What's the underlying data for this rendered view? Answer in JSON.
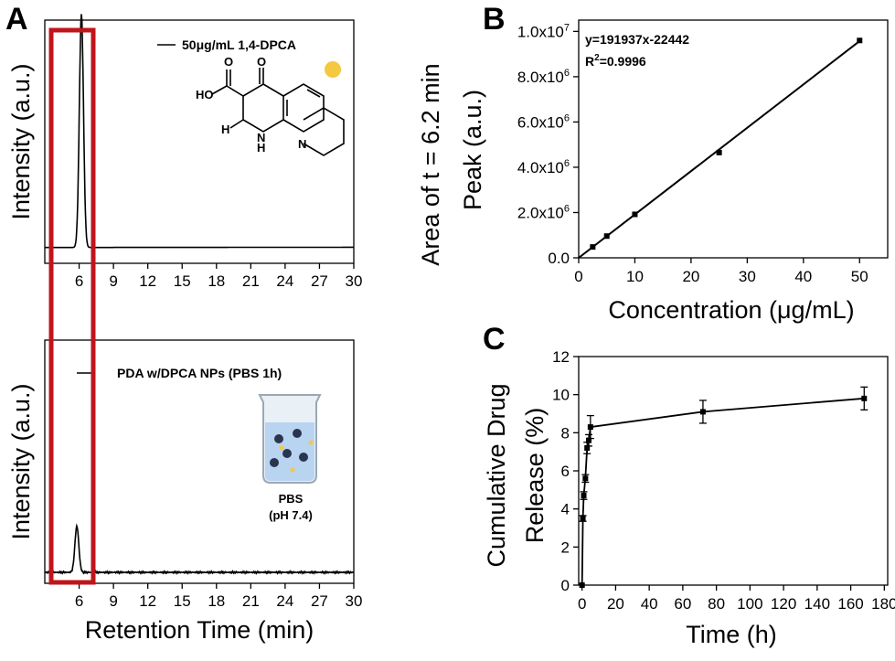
{
  "panels": {
    "a": "A",
    "b": "B",
    "c": "C"
  },
  "chart_data": [
    {
      "id": "A-top",
      "type": "line",
      "ylabel": "Intensity (a.u.)",
      "xlabel": "",
      "xlim": [
        3,
        30
      ],
      "xticks": [
        6,
        9,
        12,
        15,
        18,
        21,
        24,
        27,
        30
      ],
      "series": [
        {
          "name": "50μg/mL 1,4-DPCA",
          "peak_center": 6.2,
          "peak_height": 0.96
        }
      ],
      "molecule_labels": {
        "ho": "HO",
        "o": "O",
        "h": "H",
        "nh": "H",
        "n_ring": "N",
        "n_py": "N"
      }
    },
    {
      "id": "A-bottom",
      "type": "line",
      "ylabel": "Intensity (a.u.)",
      "xlabel": "Retention Time (min)",
      "xlim": [
        3,
        30
      ],
      "xticks": [
        6,
        9,
        12,
        15,
        18,
        21,
        24,
        27,
        30
      ],
      "series": [
        {
          "name": "PDA w/DPCA NPs (PBS 1h)",
          "peak_center": 5.8,
          "peak_height": 0.19
        }
      ],
      "beaker_label_1": "PBS",
      "beaker_label_2": "(pH 7.4)"
    },
    {
      "id": "B",
      "type": "scatter",
      "xlabel": "Concentration (μg/mL)",
      "ylabel_line1": "Area of t = 6.2 min",
      "ylabel_line2": "Peak (a.u.)",
      "xlim": [
        0,
        55
      ],
      "ylim": [
        0,
        10500000
      ],
      "xticks": [
        0,
        10,
        20,
        30,
        40,
        50
      ],
      "yticks": [
        0,
        2000000,
        4000000,
        6000000,
        8000000,
        10000000
      ],
      "ytick_labels": [
        {
          "base": "0.0",
          "exp": ""
        },
        {
          "base": "2.0x10",
          "exp": "6"
        },
        {
          "base": "4.0x10",
          "exp": "6"
        },
        {
          "base": "6.0x10",
          "exp": "6"
        },
        {
          "base": "8.0x10",
          "exp": "6"
        },
        {
          "base": "1.0x10",
          "exp": "7"
        }
      ],
      "x": [
        2.5,
        5,
        10,
        25,
        50
      ],
      "y": [
        480000,
        960000,
        1920000,
        4650000,
        9600000
      ],
      "fit": {
        "slope": 191937,
        "intercept": -22442
      },
      "equation": "y=191937x-22442",
      "r2_prefix": "R",
      "r2_sup": "2",
      "r2_value": "=0.9996"
    },
    {
      "id": "C",
      "type": "line",
      "xlabel": "Time (h)",
      "ylabel_line1": "Cumulative Drug",
      "ylabel_line2": "Release (%)",
      "xlim": [
        -2,
        182
      ],
      "ylim": [
        0,
        12
      ],
      "xticks": [
        0,
        20,
        40,
        60,
        80,
        100,
        120,
        140,
        160,
        180
      ],
      "yticks": [
        0,
        2,
        4,
        6,
        8,
        10,
        12
      ],
      "x": [
        0,
        0.5,
        1,
        2,
        3,
        4,
        5,
        72,
        168
      ],
      "y": [
        0,
        3.5,
        4.7,
        5.6,
        7.2,
        7.6,
        8.3,
        9.1,
        9.8
      ],
      "err": [
        0,
        0.15,
        0.2,
        0.2,
        0.3,
        0.3,
        0.6,
        0.6,
        0.6
      ]
    }
  ]
}
